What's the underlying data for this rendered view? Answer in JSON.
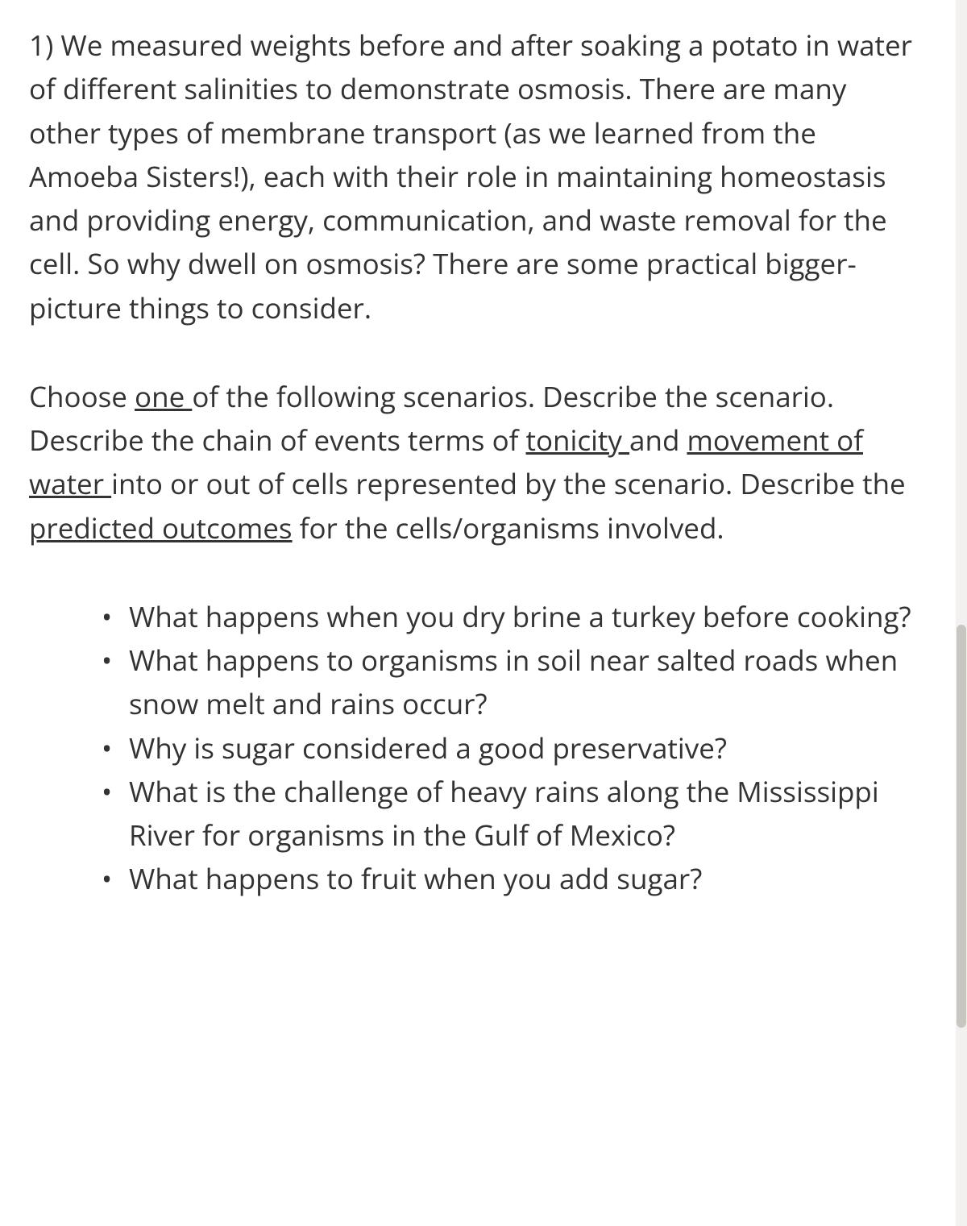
{
  "text_color": "#333333",
  "background_color": "#ffffff",
  "font_size_pt": 26,
  "line_height": 1.55,
  "scrollbar": {
    "track_color": "#f3f1ef",
    "thumb_color": "#c9c6c2"
  },
  "p1": {
    "full": "1) We measured weights before and after soaking a potato in water of different salinities to demonstrate osmosis. There are many other types of membrane transport (as we learned from the Amoeba Sisters!), each with their role in maintaining homeostasis and providing energy, communication, and waste removal for the cell. So why dwell on osmosis? There are some practical bigger-picture things to consider."
  },
  "p2": {
    "s1a": "Choose ",
    "s1_u": "one ",
    "s1b": "of the following scenarios.  Describe the scenario. Describe the chain of events terms of ",
    "s1_u2": "tonicity ",
    "s1c": "and ",
    "s1_u3": "movement of water ",
    "s1d": "into or out of cells represented by the scenario. Describe the ",
    "s1_u4": "predicted outcomes",
    "s1e": " for the cells/organisms involved."
  },
  "bullets": [
    "What happens when you dry brine a turkey before cooking?",
    "What happens to organisms in soil near salted roads when snow melt and rains occur?",
    "Why is sugar considered a good preservative?",
    "What is the challenge of heavy rains along the Mississippi River for organisms in the Gulf of Mexico?",
    "What happens to fruit when you add sugar?"
  ]
}
